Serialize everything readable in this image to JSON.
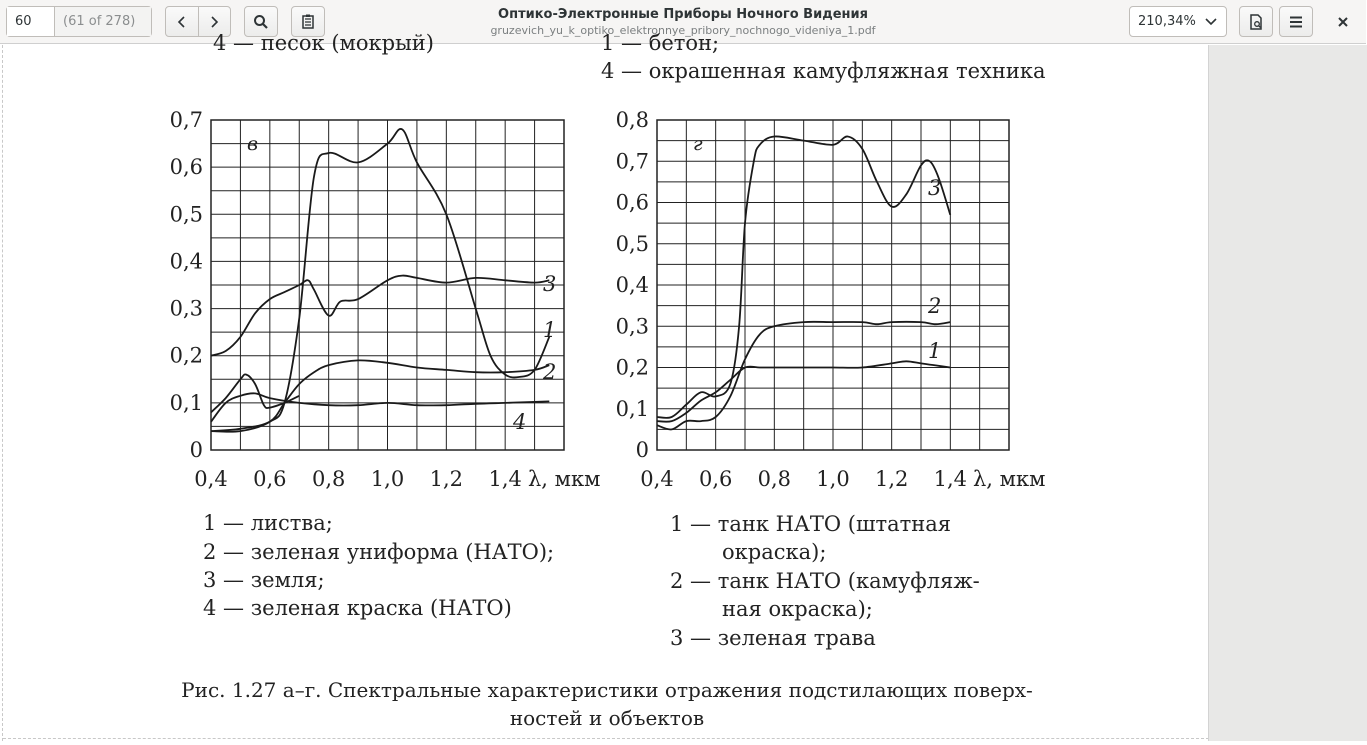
{
  "toolbar": {
    "page_number": "60",
    "page_count": "(61 of 278)",
    "title": "Оптико-Электронные Приборы Ночного Видения",
    "filename": "gruzevich_yu_k_optiko_elektronnye_pribory_nochnogo_videniya_1.pdf",
    "zoom": "210,34%",
    "icons": [
      "chevron-left-icon",
      "chevron-right-icon",
      "search-icon",
      "annotations-icon",
      "chevron-down-icon",
      "document-properties-icon",
      "menu-icon",
      "close-icon"
    ]
  },
  "page": {
    "top_left_cut": "4 — песок (мокрый)",
    "top_right_cut": "1 — бетон;",
    "top_right_line": "4 — окрашенная камуфляжная техника",
    "caption_line1": "Рис. 1.27 а–г. Спектральные характеристики отражения подстилающих поверх-",
    "caption_line2": "ностей и объектов",
    "legend_left": [
      "1 — листва;",
      "2 — зеленая униформа (НАТО);",
      "3 — земля;",
      "4 — зеленая краска (НАТО)"
    ],
    "legend_right": [
      "1 — танк НАТО (штатная",
      "окраска);",
      "2 — танк НАТО (камуфляж-",
      "ная окраска);",
      "3 — зеленая трава"
    ]
  },
  "chart_data": [
    {
      "type": "line",
      "panel_label": "в",
      "xlabel": "λ, мкм",
      "ylabel": "",
      "xlim": [
        0.4,
        1.6
      ],
      "ylim": [
        0,
        0.7
      ],
      "x_ticks": [
        "0,4",
        "0,6",
        "0,8",
        "1,0",
        "1,2",
        "1,4"
      ],
      "y_ticks": [
        "0",
        "0,1",
        "0,2",
        "0,3",
        "0,4",
        "0,5",
        "0,6",
        "0,7"
      ],
      "grid": true,
      "series": [
        {
          "name": "1",
          "x": [
            0.4,
            0.5,
            0.6,
            0.65,
            0.7,
            0.75,
            0.8,
            0.9,
            1.0,
            1.05,
            1.1,
            1.2,
            1.3,
            1.35,
            1.4,
            1.45,
            1.5,
            1.55
          ],
          "y": [
            0.04,
            0.04,
            0.06,
            0.1,
            0.28,
            0.58,
            0.63,
            0.61,
            0.65,
            0.68,
            0.61,
            0.5,
            0.3,
            0.2,
            0.16,
            0.155,
            0.17,
            0.24
          ]
        },
        {
          "name": "2",
          "x": [
            0.4,
            0.5,
            0.6,
            0.65,
            0.7,
            0.75,
            0.8,
            0.9,
            1.0,
            1.1,
            1.2,
            1.3,
            1.4,
            1.5,
            1.55
          ],
          "y": [
            0.04,
            0.045,
            0.06,
            0.1,
            0.14,
            0.165,
            0.18,
            0.19,
            0.185,
            0.175,
            0.17,
            0.165,
            0.165,
            0.17,
            0.18
          ]
        },
        {
          "name": "3",
          "x": [
            0.4,
            0.45,
            0.5,
            0.55,
            0.6,
            0.65,
            0.7,
            0.73,
            0.75,
            0.8,
            0.84,
            0.9,
            1.0,
            1.05,
            1.1,
            1.2,
            1.3,
            1.4,
            1.5,
            1.55
          ],
          "y": [
            0.2,
            0.21,
            0.24,
            0.29,
            0.32,
            0.335,
            0.35,
            0.36,
            0.34,
            0.285,
            0.315,
            0.32,
            0.36,
            0.37,
            0.365,
            0.355,
            0.365,
            0.36,
            0.355,
            0.36
          ]
        },
        {
          "name": "4",
          "x": [
            0.4,
            0.45,
            0.5,
            0.55,
            0.6,
            0.7,
            0.8,
            0.9,
            1.0,
            1.1,
            1.2,
            1.3,
            1.4,
            1.5,
            1.55
          ],
          "y": [
            0.06,
            0.1,
            0.115,
            0.12,
            0.11,
            0.1,
            0.095,
            0.095,
            0.1,
            0.095,
            0.095,
            0.098,
            0.1,
            0.102,
            0.103
          ]
        },
        {
          "name": "",
          "x": [
            0.4,
            0.45,
            0.5,
            0.52,
            0.55,
            0.58,
            0.6,
            0.65,
            0.7
          ],
          "y": [
            0.08,
            0.11,
            0.15,
            0.16,
            0.14,
            0.095,
            0.09,
            0.1,
            0.115
          ]
        }
      ]
    },
    {
      "type": "line",
      "panel_label": "г",
      "xlabel": "λ, мкм",
      "ylabel": "",
      "xlim": [
        0.4,
        1.6
      ],
      "ylim": [
        0,
        0.8
      ],
      "x_ticks": [
        "0,4",
        "0,6",
        "0,8",
        "1,0",
        "1,2",
        "1,4"
      ],
      "y_ticks": [
        "0",
        "0,1",
        "0,2",
        "0,3",
        "0,4",
        "0,5",
        "0,6",
        "0,7",
        "0,8"
      ],
      "grid": true,
      "series": [
        {
          "name": "1",
          "x": [
            0.4,
            0.45,
            0.5,
            0.55,
            0.6,
            0.65,
            0.7,
            0.75,
            0.8,
            0.9,
            1.0,
            1.1,
            1.2,
            1.25,
            1.3,
            1.35,
            1.4
          ],
          "y": [
            0.07,
            0.07,
            0.09,
            0.12,
            0.14,
            0.17,
            0.2,
            0.2,
            0.2,
            0.2,
            0.2,
            0.2,
            0.21,
            0.215,
            0.21,
            0.205,
            0.2
          ]
        },
        {
          "name": "2",
          "x": [
            0.4,
            0.45,
            0.5,
            0.55,
            0.6,
            0.65,
            0.7,
            0.75,
            0.8,
            0.9,
            1.0,
            1.1,
            1.15,
            1.2,
            1.3,
            1.35,
            1.4
          ],
          "y": [
            0.06,
            0.05,
            0.07,
            0.07,
            0.08,
            0.13,
            0.22,
            0.28,
            0.3,
            0.31,
            0.31,
            0.31,
            0.305,
            0.31,
            0.31,
            0.305,
            0.31
          ]
        },
        {
          "name": "3",
          "x": [
            0.4,
            0.45,
            0.5,
            0.55,
            0.6,
            0.65,
            0.68,
            0.7,
            0.73,
            0.75,
            0.8,
            0.9,
            1.0,
            1.05,
            1.1,
            1.15,
            1.2,
            1.25,
            1.3,
            1.33,
            1.36,
            1.4
          ],
          "y": [
            0.08,
            0.08,
            0.11,
            0.14,
            0.13,
            0.16,
            0.3,
            0.55,
            0.7,
            0.74,
            0.76,
            0.75,
            0.74,
            0.76,
            0.73,
            0.65,
            0.59,
            0.62,
            0.69,
            0.7,
            0.66,
            0.57
          ]
        }
      ]
    }
  ]
}
